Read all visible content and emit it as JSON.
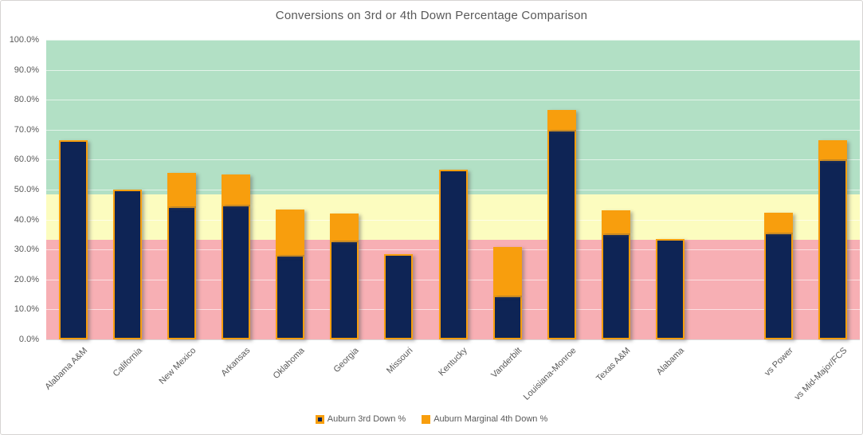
{
  "chart_data": {
    "type": "bar",
    "stacked": true,
    "title": "Conversions on 3rd or 4th Down Percentage Comparison",
    "categories": [
      "Alabama A&M",
      "California",
      "New Mexico",
      "Arkansas",
      "Oklahoma",
      "Georgia",
      "Missouri",
      "Kentucky",
      "Vanderbilt",
      "Louisiana-Monroe",
      "Texas A&M",
      "Alabama",
      "",
      "vs Power",
      "vs Mid-Major/FCS"
    ],
    "series": [
      {
        "name": "Auburn 3rd Down %",
        "fill_color": "#0E2455",
        "border_color": "#F89E0D",
        "values": [
          66.4,
          50.0,
          44.3,
          45.0,
          28.3,
          33.0,
          28.5,
          56.6,
          14.7,
          70.0,
          35.4,
          33.4,
          null,
          35.6,
          60.0
        ]
      },
      {
        "name": "Auburn Marginal 4th Down %",
        "fill_color": "#F89E0D",
        "border_color": "#F89E0D",
        "values": [
          0,
          0,
          11.3,
          10.1,
          15.1,
          8.9,
          0,
          0,
          16.2,
          6.7,
          7.8,
          0,
          null,
          6.7,
          6.5
        ]
      }
    ],
    "ylim": [
      0,
      100
    ],
    "y_tick_step": 10,
    "y_tick_labels": [
      "0.0%",
      "10.0%",
      "20.0%",
      "30.0%",
      "40.0%",
      "50.0%",
      "60.0%",
      "70.0%",
      "80.0%",
      "90.0%",
      "100.0%"
    ],
    "bands": [
      {
        "from": 0,
        "to": 33.3,
        "color": "#F7AFB4",
        "zone": "red-zone"
      },
      {
        "from": 33.3,
        "to": 48.5,
        "color": "#FCFCBF",
        "zone": "yellow-zone"
      },
      {
        "from": 48.5,
        "to": 100,
        "color": "#B2E0C5",
        "zone": "green-zone"
      }
    ],
    "grid": true,
    "legend_position": "bottom",
    "title_color": "#595959",
    "axis_label_color": "#595959"
  }
}
